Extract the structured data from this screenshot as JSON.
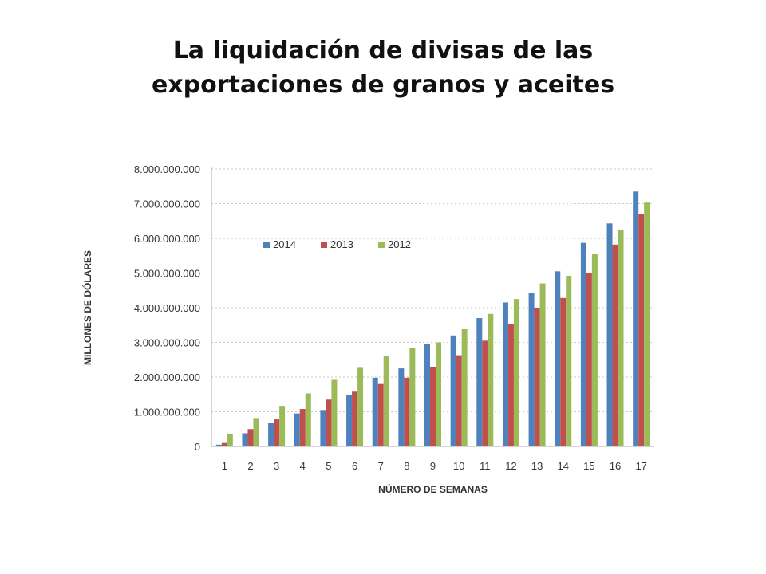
{
  "title": {
    "line1": "La liquidación de divisas de las",
    "line2": "exportaciones de granos y aceites"
  },
  "chart_data": {
    "type": "bar",
    "xlabel": "NÚMERO DE SEMANAS",
    "ylabel": "MILLONES DE DÓLARES",
    "ylim": [
      0,
      8000000000
    ],
    "yticks": [
      0,
      1000000000,
      2000000000,
      3000000000,
      4000000000,
      5000000000,
      6000000000,
      7000000000,
      8000000000
    ],
    "ytick_labels": [
      "0",
      "1.000.000.000",
      "2.000.000.000",
      "3.000.000.000",
      "4.000.000.000",
      "5.000.000.000",
      "6.000.000.000",
      "7.000.000.000",
      "8.000.000.000"
    ],
    "grid": true,
    "legend_position": "upper-left",
    "categories": [
      "1",
      "2",
      "3",
      "4",
      "5",
      "6",
      "7",
      "8",
      "9",
      "10",
      "11",
      "12",
      "13",
      "14",
      "15",
      "16",
      "17"
    ],
    "series": [
      {
        "name": "2014",
        "color": "#4f81bd",
        "values": [
          50000000,
          380000000,
          680000000,
          950000000,
          1050000000,
          1480000000,
          1980000000,
          2250000000,
          2950000000,
          3200000000,
          3700000000,
          4150000000,
          4430000000,
          5050000000,
          5870000000,
          6430000000,
          7350000000
        ]
      },
      {
        "name": "2013",
        "color": "#c0504d",
        "values": [
          100000000,
          500000000,
          780000000,
          1080000000,
          1350000000,
          1580000000,
          1800000000,
          1980000000,
          2300000000,
          2630000000,
          3050000000,
          3530000000,
          4000000000,
          4280000000,
          5000000000,
          5820000000,
          6700000000
        ]
      },
      {
        "name": "2012",
        "color": "#9bbb59",
        "values": [
          350000000,
          820000000,
          1170000000,
          1530000000,
          1920000000,
          2290000000,
          2600000000,
          2830000000,
          3000000000,
          3380000000,
          3820000000,
          4250000000,
          4700000000,
          4920000000,
          5560000000,
          6230000000,
          7030000000
        ]
      }
    ]
  }
}
